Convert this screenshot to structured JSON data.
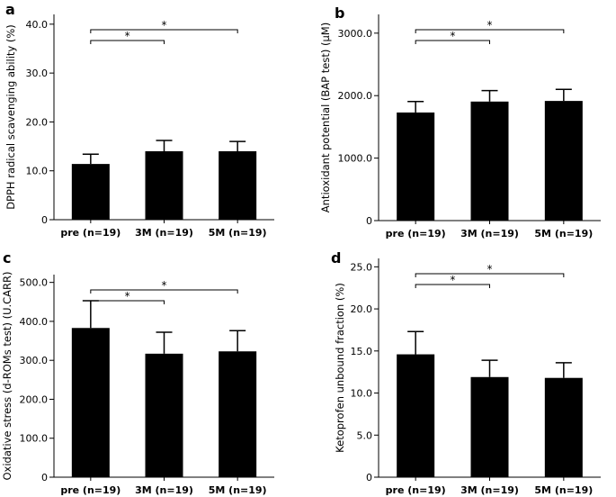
{
  "chart_data": [
    {
      "type": "bar",
      "panel_label": "a",
      "ylabel": "DPPH radical scavenging ability (%)",
      "categories": [
        "pre (n=19)",
        "3M (n=19)",
        "5M (n=19)"
      ],
      "values": [
        11.4,
        14.0,
        14.0
      ],
      "errors": [
        2.0,
        2.2,
        2.0
      ],
      "ylim": [
        0,
        42
      ],
      "yticks": [
        0,
        10,
        20,
        30,
        40
      ],
      "ytick_labels": [
        "0",
        "10.0",
        "20.0",
        "30.0",
        "40.0"
      ],
      "significance": [
        {
          "from": 0,
          "to": 1,
          "label": "*"
        },
        {
          "from": 0,
          "to": 2,
          "label": "*"
        }
      ]
    },
    {
      "type": "bar",
      "panel_label": "b",
      "ylabel": "Antioxidant potential (BAP test) (μM)",
      "categories": [
        "pre (n=19)",
        "3M (n=19)",
        "5M (n=19)"
      ],
      "values": [
        1730,
        1905,
        1915
      ],
      "errors": [
        175,
        175,
        185
      ],
      "ylim": [
        0,
        3300
      ],
      "yticks": [
        0,
        1000,
        2000,
        3000
      ],
      "ytick_labels": [
        "0",
        "1000.0",
        "2000.0",
        "3000.0"
      ],
      "significance": [
        {
          "from": 0,
          "to": 1,
          "label": "*"
        },
        {
          "from": 0,
          "to": 2,
          "label": "*"
        }
      ]
    },
    {
      "type": "bar",
      "panel_label": "c",
      "ylabel": "Oxidative stress (d-ROMs test) (U.CARR)",
      "categories": [
        "pre (n=19)",
        "3M (n=19)",
        "5M (n=19)"
      ],
      "values": [
        383,
        317,
        323
      ],
      "errors": [
        70,
        55,
        53
      ],
      "ylim": [
        0,
        520
      ],
      "yticks": [
        0,
        100,
        200,
        300,
        400,
        500
      ],
      "ytick_labels": [
        "0",
        "100.0",
        "200.0",
        "300.0",
        "400.0",
        "500.0"
      ],
      "significance": [
        {
          "from": 0,
          "to": 1,
          "label": "*"
        },
        {
          "from": 0,
          "to": 2,
          "label": "*"
        }
      ]
    },
    {
      "type": "bar",
      "panel_label": "d",
      "ylabel": "Ketoprofen unbound fraction (%)",
      "categories": [
        "pre (n=19)",
        "3M (n=19)",
        "5M (n=19)"
      ],
      "values": [
        14.6,
        11.9,
        11.8
      ],
      "errors": [
        2.7,
        2.0,
        1.8
      ],
      "ylim": [
        0,
        26
      ],
      "yticks": [
        0,
        5,
        10,
        15,
        20,
        25
      ],
      "ytick_labels": [
        "0",
        "5.0",
        "10.0",
        "15.0",
        "20.0",
        "25.0"
      ],
      "significance": [
        {
          "from": 0,
          "to": 1,
          "label": "*"
        },
        {
          "from": 0,
          "to": 2,
          "label": "*"
        }
      ]
    }
  ]
}
